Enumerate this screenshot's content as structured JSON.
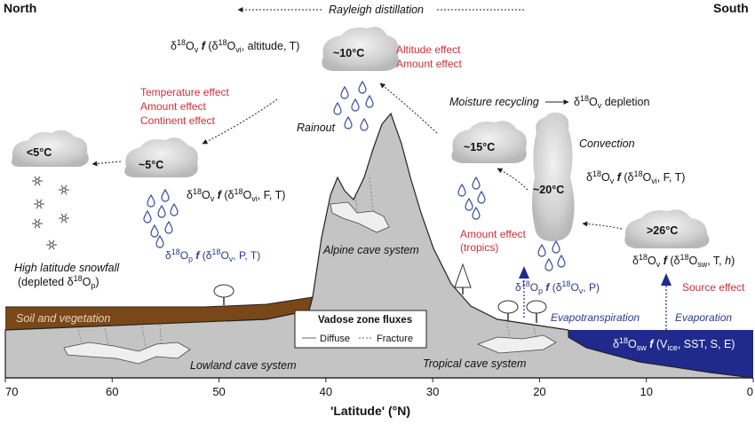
{
  "header": {
    "north": "North",
    "south": "South",
    "rayleigh": "Rayleigh distillation"
  },
  "clouds": [
    {
      "temp": "<5°C"
    },
    {
      "temp": "~5°C"
    },
    {
      "temp": "~10°C"
    },
    {
      "temp": "~15°C"
    },
    {
      "temp": "~20°C"
    },
    {
      "temp": ">26°C"
    }
  ],
  "effects": {
    "temperature": "Temperature effect",
    "amount": "Amount effect",
    "continent": "Continent effect",
    "altitude": "Altitude effect",
    "amount_top": "Amount effect",
    "amount_tropics": "Amount effect",
    "tropics": "(tropics)",
    "source": "Source effect"
  },
  "labels": {
    "rainout": "Rainout",
    "moisture_recycling": "Moisture recycling",
    "convection": "Convection",
    "high_latitude": "High latitude snowfall",
    "depleted": "(depleted δ18Op)",
    "alpine_cave": "Alpine cave system",
    "lowland_cave": "Lowland cave system",
    "tropical_cave": "Tropical cave system",
    "soil": "Soil and vegetation",
    "evapotranspiration": "Evapotranspiration",
    "evaporation": "Evaporation"
  },
  "equations": {
    "top": "δ18Ov f (δ18Ovi, altitude, T)",
    "depletion": "δ18Ov depletion",
    "mid_left": "δ18Ov f (δ18Ovi, F, T)",
    "precip_left": "δ18Op f (δ18Ov, P, T)",
    "convection": "δ18Ov f (δ18Ovi, F, T)",
    "source": "δ18Ov f (δ18Osw, T, h)",
    "precip_right": "δ18Op f (δ18Ov, P)",
    "ocean": "δ18Osw f (Vice, SST, S, E)"
  },
  "legend": {
    "title": "Vadose zone fluxes",
    "diffuse": "Diffuse",
    "fracture": "Fracture"
  },
  "axis": {
    "title": "'Latitude' (°N)",
    "ticks": [
      70,
      60,
      50,
      40,
      30,
      20,
      10,
      0
    ],
    "range": [
      70,
      0
    ]
  },
  "colors": {
    "land": "#c4c4c4",
    "soil": "#7a4718",
    "ocean": "#1f2a8c",
    "red_text": "#c8323a",
    "blue_text": "#2b3a8f"
  }
}
